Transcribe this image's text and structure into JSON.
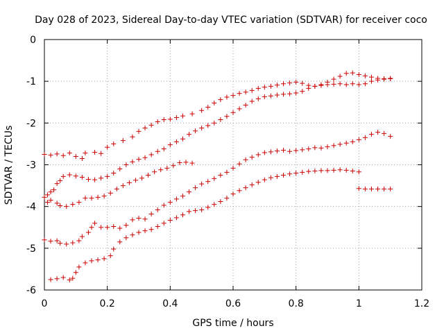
{
  "chart_data": {
    "type": "scatter",
    "title": "Day 028 of 2023, Sidereal Day-to-day VTEC variation (SDTVAR) for receiver coco",
    "xlabel": "GPS time / hours",
    "ylabel": "SDTVAR / TECUs",
    "xlim": [
      0,
      1.2
    ],
    "ylim": [
      -6,
      0
    ],
    "xticks": [
      "0",
      "0.2",
      "0.4",
      "0.6",
      "0.8",
      "1",
      "1.2"
    ],
    "yticks": [
      "0",
      "-1",
      "-2",
      "-3",
      "-4",
      "-5",
      "-6"
    ],
    "xtick_values": [
      0,
      0.2,
      0.4,
      0.6,
      0.8,
      1.0,
      1.2
    ],
    "ytick_values": [
      0,
      -1,
      -2,
      -3,
      -4,
      -5,
      -6
    ],
    "grid": true,
    "marker": "plus",
    "color": "#cc0000",
    "series": [
      {
        "points": [
          [
            0.0,
            -2.75
          ],
          [
            0.02,
            -2.77
          ],
          [
            0.04,
            -2.74
          ],
          [
            0.06,
            -2.78
          ],
          [
            0.08,
            -2.72
          ],
          [
            0.1,
            -2.8
          ],
          [
            0.12,
            -2.85
          ],
          [
            0.13,
            -2.72
          ],
          [
            0.16,
            -2.7
          ],
          [
            0.18,
            -2.73
          ],
          [
            0.2,
            -2.58
          ],
          [
            0.22,
            -2.5
          ],
          [
            0.25,
            -2.42
          ],
          [
            0.28,
            -2.33
          ],
          [
            0.3,
            -2.2
          ],
          [
            0.32,
            -2.12
          ],
          [
            0.34,
            -2.05
          ],
          [
            0.36,
            -1.97
          ],
          [
            0.38,
            -1.92
          ],
          [
            0.4,
            -1.91
          ],
          [
            0.42,
            -1.87
          ],
          [
            0.44,
            -1.83
          ],
          [
            0.47,
            -1.78
          ],
          [
            0.5,
            -1.7
          ],
          [
            0.52,
            -1.62
          ],
          [
            0.54,
            -1.52
          ],
          [
            0.56,
            -1.44
          ],
          [
            0.58,
            -1.38
          ],
          [
            0.6,
            -1.34
          ],
          [
            0.62,
            -1.29
          ],
          [
            0.64,
            -1.26
          ],
          [
            0.66,
            -1.22
          ],
          [
            0.68,
            -1.17
          ],
          [
            0.7,
            -1.14
          ],
          [
            0.72,
            -1.12
          ],
          [
            0.74,
            -1.09
          ],
          [
            0.76,
            -1.06
          ],
          [
            0.78,
            -1.04
          ],
          [
            0.8,
            -1.02
          ],
          [
            0.82,
            -1.05
          ],
          [
            0.84,
            -1.1
          ],
          [
            0.86,
            -1.12
          ],
          [
            0.88,
            -1.08
          ],
          [
            0.9,
            -1.02
          ],
          [
            0.92,
            -0.95
          ],
          [
            0.94,
            -0.88
          ],
          [
            0.96,
            -0.81
          ],
          [
            0.98,
            -0.8
          ],
          [
            1.0,
            -0.84
          ],
          [
            1.02,
            -0.87
          ],
          [
            1.04,
            -0.9
          ],
          [
            1.06,
            -0.93
          ],
          [
            1.08,
            -0.94
          ],
          [
            1.1,
            -0.93
          ]
        ]
      },
      {
        "points": [
          [
            0.0,
            -3.78
          ],
          [
            0.01,
            -3.72
          ],
          [
            0.02,
            -3.65
          ],
          [
            0.03,
            -3.6
          ],
          [
            0.04,
            -3.45
          ],
          [
            0.05,
            -3.38
          ],
          [
            0.06,
            -3.28
          ],
          [
            0.08,
            -3.24
          ],
          [
            0.1,
            -3.27
          ],
          [
            0.12,
            -3.3
          ],
          [
            0.14,
            -3.35
          ],
          [
            0.16,
            -3.36
          ],
          [
            0.18,
            -3.32
          ],
          [
            0.2,
            -3.28
          ],
          [
            0.22,
            -3.2
          ],
          [
            0.24,
            -3.1
          ],
          [
            0.26,
            -3.0
          ],
          [
            0.28,
            -2.93
          ],
          [
            0.3,
            -2.87
          ],
          [
            0.32,
            -2.83
          ],
          [
            0.34,
            -2.76
          ],
          [
            0.36,
            -2.68
          ],
          [
            0.38,
            -2.62
          ],
          [
            0.4,
            -2.52
          ],
          [
            0.42,
            -2.45
          ],
          [
            0.44,
            -2.38
          ],
          [
            0.46,
            -2.27
          ],
          [
            0.48,
            -2.19
          ],
          [
            0.5,
            -2.12
          ],
          [
            0.52,
            -2.06
          ],
          [
            0.54,
            -2.0
          ],
          [
            0.56,
            -1.92
          ],
          [
            0.58,
            -1.84
          ],
          [
            0.6,
            -1.75
          ],
          [
            0.62,
            -1.66
          ],
          [
            0.64,
            -1.57
          ],
          [
            0.66,
            -1.48
          ],
          [
            0.68,
            -1.42
          ],
          [
            0.7,
            -1.37
          ],
          [
            0.72,
            -1.35
          ],
          [
            0.74,
            -1.33
          ],
          [
            0.76,
            -1.31
          ],
          [
            0.78,
            -1.3
          ],
          [
            0.8,
            -1.28
          ],
          [
            0.82,
            -1.24
          ],
          [
            0.84,
            -1.17
          ],
          [
            0.86,
            -1.12
          ],
          [
            0.88,
            -1.1
          ],
          [
            0.9,
            -1.08
          ],
          [
            0.92,
            -1.07
          ],
          [
            0.94,
            -1.06
          ],
          [
            0.96,
            -1.08
          ],
          [
            0.98,
            -1.06
          ],
          [
            1.0,
            -1.08
          ],
          [
            1.02,
            -1.06
          ],
          [
            1.04,
            -1.0
          ],
          [
            1.06,
            -0.97
          ],
          [
            1.08,
            -0.95
          ],
          [
            1.1,
            -0.94
          ]
        ]
      },
      {
        "points": [
          [
            0.01,
            -3.9
          ],
          [
            0.02,
            -3.85
          ],
          [
            0.04,
            -3.92
          ],
          [
            0.05,
            -3.98
          ],
          [
            0.07,
            -4.0
          ],
          [
            0.09,
            -3.95
          ],
          [
            0.11,
            -3.9
          ],
          [
            0.13,
            -3.8
          ],
          [
            0.15,
            -3.8
          ],
          [
            0.17,
            -3.78
          ],
          [
            0.19,
            -3.75
          ],
          [
            0.21,
            -3.68
          ],
          [
            0.23,
            -3.58
          ],
          [
            0.25,
            -3.5
          ],
          [
            0.27,
            -3.43
          ],
          [
            0.29,
            -3.37
          ],
          [
            0.31,
            -3.32
          ],
          [
            0.33,
            -3.25
          ],
          [
            0.35,
            -3.17
          ],
          [
            0.37,
            -3.12
          ],
          [
            0.39,
            -3.08
          ],
          [
            0.41,
            -3.02
          ],
          [
            0.43,
            -2.95
          ],
          [
            0.45,
            -2.94
          ],
          [
            0.47,
            -2.96
          ]
        ]
      },
      {
        "points": [
          [
            0.0,
            -4.8
          ],
          [
            0.02,
            -4.83
          ],
          [
            0.04,
            -4.82
          ],
          [
            0.05,
            -4.88
          ],
          [
            0.07,
            -4.9
          ],
          [
            0.09,
            -4.87
          ],
          [
            0.11,
            -4.82
          ],
          [
            0.12,
            -4.72
          ],
          [
            0.14,
            -4.62
          ],
          [
            0.15,
            -4.5
          ],
          [
            0.16,
            -4.4
          ],
          [
            0.18,
            -4.5
          ],
          [
            0.2,
            -4.5
          ],
          [
            0.22,
            -4.48
          ],
          [
            0.24,
            -4.52
          ],
          [
            0.26,
            -4.45
          ],
          [
            0.28,
            -4.32
          ],
          [
            0.3,
            -4.28
          ],
          [
            0.32,
            -4.3
          ],
          [
            0.34,
            -4.18
          ],
          [
            0.36,
            -4.08
          ],
          [
            0.38,
            -3.97
          ],
          [
            0.4,
            -3.9
          ],
          [
            0.42,
            -3.82
          ],
          [
            0.44,
            -3.75
          ],
          [
            0.46,
            -3.65
          ],
          [
            0.48,
            -3.55
          ],
          [
            0.5,
            -3.46
          ],
          [
            0.52,
            -3.4
          ],
          [
            0.54,
            -3.33
          ],
          [
            0.56,
            -3.25
          ],
          [
            0.58,
            -3.18
          ],
          [
            0.6,
            -3.08
          ],
          [
            0.62,
            -2.98
          ],
          [
            0.64,
            -2.88
          ],
          [
            0.66,
            -2.82
          ],
          [
            0.68,
            -2.76
          ],
          [
            0.7,
            -2.71
          ],
          [
            0.72,
            -2.69
          ],
          [
            0.74,
            -2.67
          ],
          [
            0.76,
            -2.65
          ],
          [
            0.78,
            -2.68
          ],
          [
            0.8,
            -2.66
          ],
          [
            0.82,
            -2.64
          ],
          [
            0.84,
            -2.62
          ],
          [
            0.86,
            -2.59
          ],
          [
            0.88,
            -2.6
          ],
          [
            0.9,
            -2.57
          ],
          [
            0.92,
            -2.54
          ],
          [
            0.94,
            -2.51
          ],
          [
            0.96,
            -2.48
          ],
          [
            0.98,
            -2.45
          ],
          [
            1.0,
            -2.4
          ],
          [
            1.02,
            -2.35
          ],
          [
            1.04,
            -2.27
          ],
          [
            1.06,
            -2.22
          ],
          [
            1.08,
            -2.25
          ],
          [
            1.1,
            -2.32
          ]
        ]
      },
      {
        "points": [
          [
            0.02,
            -5.75
          ],
          [
            0.04,
            -5.73
          ],
          [
            0.06,
            -5.7
          ],
          [
            0.08,
            -5.76
          ],
          [
            0.09,
            -5.72
          ],
          [
            0.1,
            -5.58
          ],
          [
            0.11,
            -5.45
          ],
          [
            0.13,
            -5.35
          ],
          [
            0.15,
            -5.3
          ],
          [
            0.17,
            -5.28
          ],
          [
            0.19,
            -5.25
          ],
          [
            0.21,
            -5.18
          ],
          [
            0.22,
            -5.02
          ],
          [
            0.24,
            -4.85
          ],
          [
            0.26,
            -4.75
          ],
          [
            0.28,
            -4.68
          ],
          [
            0.3,
            -4.62
          ],
          [
            0.32,
            -4.58
          ],
          [
            0.34,
            -4.55
          ],
          [
            0.36,
            -4.48
          ],
          [
            0.38,
            -4.4
          ],
          [
            0.4,
            -4.33
          ],
          [
            0.42,
            -4.27
          ],
          [
            0.44,
            -4.2
          ],
          [
            0.46,
            -4.12
          ],
          [
            0.48,
            -4.1
          ],
          [
            0.5,
            -4.08
          ],
          [
            0.52,
            -4.02
          ],
          [
            0.54,
            -3.95
          ],
          [
            0.56,
            -3.88
          ],
          [
            0.58,
            -3.8
          ],
          [
            0.6,
            -3.7
          ],
          [
            0.62,
            -3.62
          ],
          [
            0.64,
            -3.55
          ],
          [
            0.66,
            -3.48
          ],
          [
            0.68,
            -3.42
          ],
          [
            0.7,
            -3.36
          ],
          [
            0.72,
            -3.31
          ],
          [
            0.74,
            -3.28
          ],
          [
            0.76,
            -3.25
          ],
          [
            0.78,
            -3.22
          ],
          [
            0.8,
            -3.2
          ],
          [
            0.82,
            -3.18
          ],
          [
            0.84,
            -3.16
          ],
          [
            0.86,
            -3.15
          ],
          [
            0.88,
            -3.14
          ],
          [
            0.9,
            -3.14
          ],
          [
            0.92,
            -3.13
          ],
          [
            0.94,
            -3.12
          ],
          [
            0.96,
            -3.13
          ],
          [
            0.98,
            -3.15
          ],
          [
            1.0,
            -3.17
          ]
        ]
      },
      {
        "points": [
          [
            1.0,
            -3.57
          ],
          [
            1.02,
            -3.58
          ],
          [
            1.04,
            -3.58
          ],
          [
            1.06,
            -3.58
          ],
          [
            1.08,
            -3.58
          ],
          [
            1.1,
            -3.58
          ]
        ]
      }
    ]
  }
}
